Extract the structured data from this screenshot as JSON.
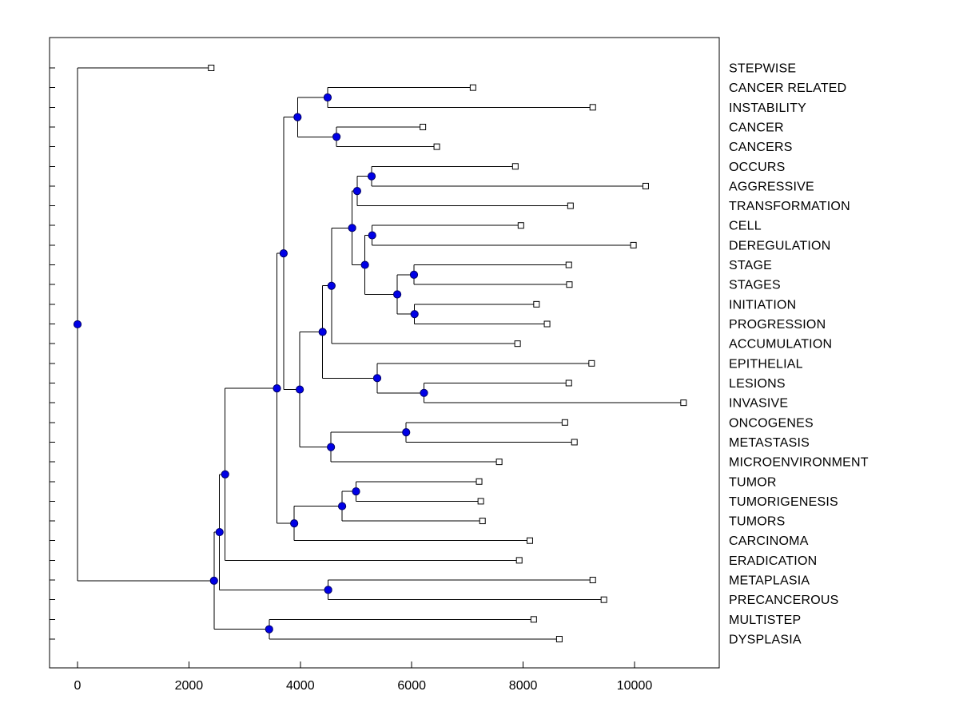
{
  "chart_data": {
    "type": "dendrogram",
    "orientation": "horizontal",
    "title": "",
    "xlabel": "",
    "ylabel": "",
    "x_ticks": [
      0,
      2000,
      4000,
      6000,
      8000,
      10000
    ],
    "xlim": [
      -500,
      11500
    ],
    "grid": false,
    "legend": "none",
    "colors": {
      "axis": "#000000",
      "branch": "#000000",
      "internal_marker_fill": "#0000e6",
      "internal_marker_edge": "#000066",
      "leaf_marker_fill": "#ffffff",
      "leaf_marker_edge": "#000000",
      "background": "#ffffff"
    },
    "leaf_labels": [
      "STEPWISE",
      "CANCER RELATED",
      "INSTABILITY",
      "CANCER",
      "CANCERS",
      "OCCURS",
      "AGGRESSIVE",
      "TRANSFORMATION",
      "CELL",
      "DEREGULATION",
      "STAGE",
      "STAGES",
      "INITIATION",
      "PROGRESSION",
      "ACCUMULATION",
      "EPITHELIAL",
      "LESIONS",
      "INVASIVE",
      "ONCOGENES",
      "METASTASIS",
      "MICROENVIRONMENT",
      "TUMOR",
      "TUMORIGENESIS",
      "TUMORS",
      "CARCINOMA",
      "ERADICATION",
      "METAPLASIA",
      "PRECANCEROUS",
      "MULTISTEP",
      "DYSPLASIA"
    ],
    "tree": {
      "x": 0,
      "children": [
        {
          "label": "STEPWISE",
          "x": 2400
        },
        {
          "x": 2450,
          "children": [
            {
              "x": 2550,
              "children": [
                {
                  "x": 2650,
                  "children": [
                    {
                      "x": 3580,
                      "children": [
                        {
                          "x": 3700,
                          "children": [
                            {
                              "x": 3950,
                              "children": [
                                {
                                  "x": 4490,
                                  "children": [
                                    {
                                      "label": "CANCER RELATED",
                                      "x": 7100
                                    },
                                    {
                                      "label": "INSTABILITY",
                                      "x": 9250
                                    }
                                  ]
                                },
                                {
                                  "x": 4650,
                                  "children": [
                                    {
                                      "label": "CANCER",
                                      "x": 6200
                                    },
                                    {
                                      "label": "CANCERS",
                                      "x": 6450
                                    }
                                  ]
                                }
                              ]
                            },
                            {
                              "x": 3990,
                              "children": [
                                {
                                  "x": 4400,
                                  "children": [
                                    {
                                      "x": 4560,
                                      "children": [
                                        {
                                          "x": 4930,
                                          "children": [
                                            {
                                              "x": 5020,
                                              "children": [
                                                {
                                                  "x": 5280,
                                                  "children": [
                                                    {
                                                      "label": "OCCURS",
                                                      "x": 7860
                                                    },
                                                    {
                                                      "label": "AGGRESSIVE",
                                                      "x": 10200
                                                    }
                                                  ]
                                                },
                                                {
                                                  "label": "TRANSFORMATION",
                                                  "x": 8850
                                                }
                                              ]
                                            },
                                            {
                                              "x": 5160,
                                              "children": [
                                                {
                                                  "x": 5290,
                                                  "children": [
                                                    {
                                                      "label": "CELL",
                                                      "x": 7960
                                                    },
                                                    {
                                                      "label": "DEREGULATION",
                                                      "x": 9980
                                                    }
                                                  ]
                                                },
                                                {
                                                  "x": 5740,
                                                  "children": [
                                                    {
                                                      "x": 6040,
                                                      "children": [
                                                        {
                                                          "label": "STAGE",
                                                          "x": 8820
                                                        },
                                                        {
                                                          "label": "STAGES",
                                                          "x": 8830
                                                        }
                                                      ]
                                                    },
                                                    {
                                                      "x": 6050,
                                                      "children": [
                                                        {
                                                          "label": "INITIATION",
                                                          "x": 8240
                                                        },
                                                        {
                                                          "label": "PROGRESSION",
                                                          "x": 8430
                                                        }
                                                      ]
                                                    }
                                                  ]
                                                }
                                              ]
                                            }
                                          ]
                                        },
                                        {
                                          "label": "ACCUMULATION",
                                          "x": 7900
                                        }
                                      ]
                                    },
                                    {
                                      "x": 5380,
                                      "children": [
                                        {
                                          "label": "EPITHELIAL",
                                          "x": 9230
                                        },
                                        {
                                          "x": 6220,
                                          "children": [
                                            {
                                              "label": "LESIONS",
                                              "x": 8820
                                            },
                                            {
                                              "label": "INVASIVE",
                                              "x": 10880
                                            }
                                          ]
                                        }
                                      ]
                                    }
                                  ]
                                },
                                {
                                  "x": 4550,
                                  "children": [
                                    {
                                      "x": 5900,
                                      "children": [
                                        {
                                          "label": "ONCOGENES",
                                          "x": 8750
                                        },
                                        {
                                          "label": "METASTASIS",
                                          "x": 8920
                                        }
                                      ]
                                    },
                                    {
                                      "label": "MICROENVIRONMENT",
                                      "x": 7570
                                    }
                                  ]
                                }
                              ]
                            }
                          ]
                        },
                        {
                          "x": 3890,
                          "children": [
                            {
                              "x": 4750,
                              "children": [
                                {
                                  "x": 5000,
                                  "children": [
                                    {
                                      "label": "TUMOR",
                                      "x": 7210
                                    },
                                    {
                                      "label": "TUMORIGENESIS",
                                      "x": 7240
                                    }
                                  ]
                                },
                                {
                                  "label": "TUMORS",
                                  "x": 7270
                                }
                              ]
                            },
                            {
                              "label": "CARCINOMA",
                              "x": 8120
                            }
                          ]
                        }
                      ]
                    },
                    {
                      "label": "ERADICATION",
                      "x": 7930
                    }
                  ]
                },
                {
                  "x": 4500,
                  "children": [
                    {
                      "label": "METAPLASIA",
                      "x": 9250
                    },
                    {
                      "label": "PRECANCEROUS",
                      "x": 9450
                    }
                  ]
                }
              ]
            },
            {
              "x": 3440,
              "children": [
                {
                  "label": "MULTISTEP",
                  "x": 8190
                },
                {
                  "label": "DYSPLASIA",
                  "x": 8650
                }
              ]
            }
          ]
        }
      ]
    }
  }
}
